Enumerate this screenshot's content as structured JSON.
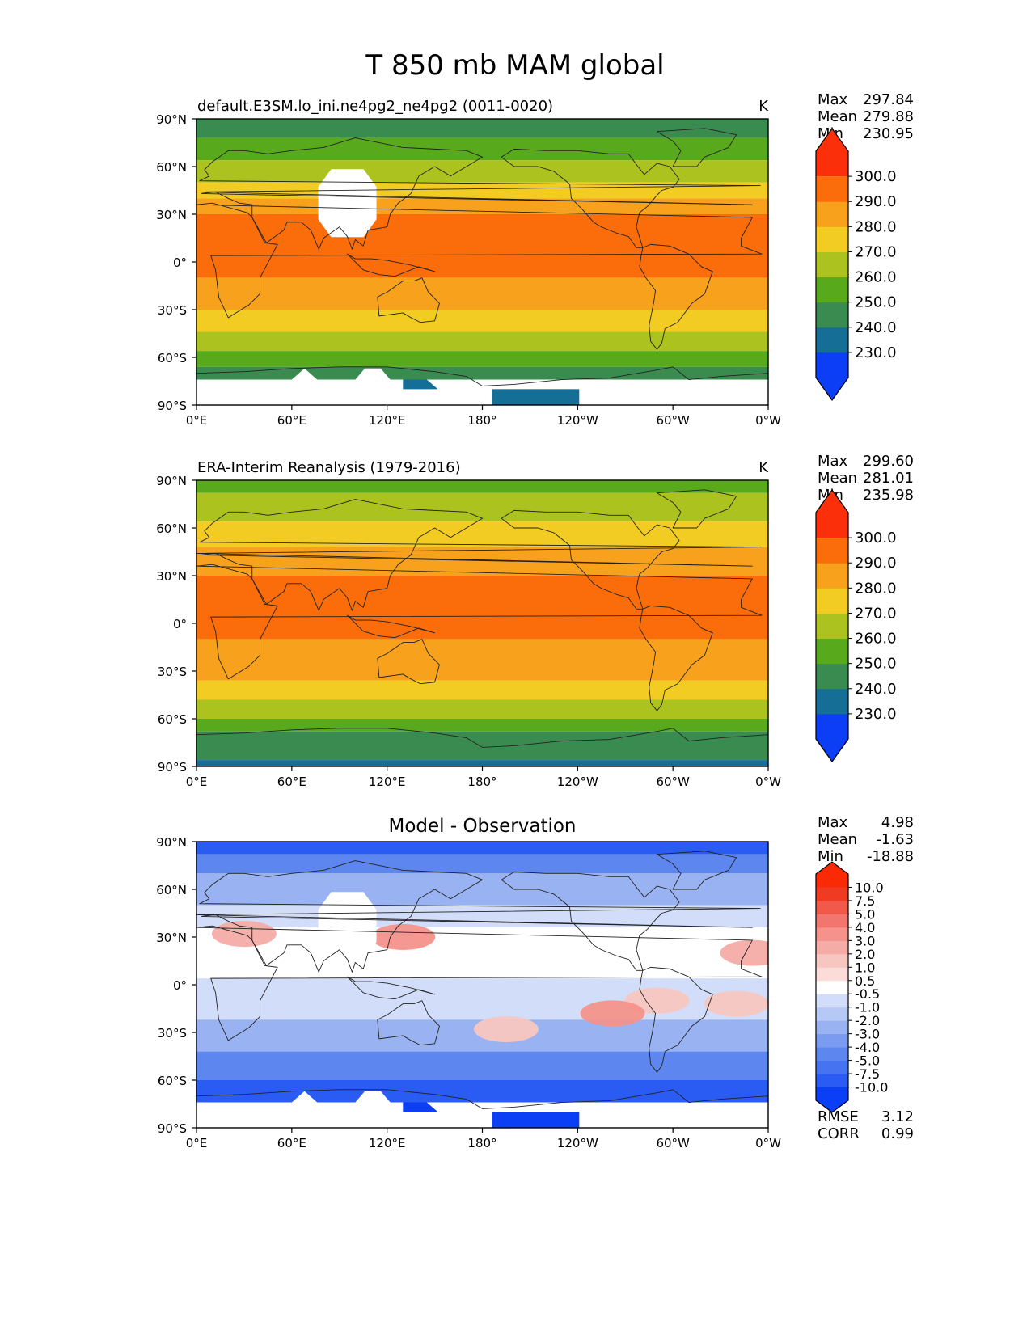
{
  "figure_title": "T 850 mb MAM global",
  "axis": {
    "x_ticks": [
      "0°E",
      "60°E",
      "120°E",
      "180°",
      "120°W",
      "60°W",
      "0°W"
    ],
    "y_ticks": [
      "90°N",
      "60°N",
      "30°N",
      "0°",
      "30°S",
      "60°S",
      "90°S"
    ]
  },
  "chart_data": [
    {
      "type": "heatmap",
      "title": "default.E3SM.lo_ini.ne4pg2_ne4pg2 (0011-0020)",
      "units": "K",
      "xlim": [
        0,
        360
      ],
      "ylim": [
        -90,
        90
      ],
      "stats": {
        "max_label": "Max",
        "max": "297.84",
        "mean_label": "Mean",
        "mean": "279.88",
        "min_label": "Min",
        "min": "230.95"
      },
      "colorbar": {
        "levels": [
          "230.0",
          "240.0",
          "250.0",
          "260.0",
          "270.0",
          "280.0",
          "290.0",
          "300.0"
        ],
        "colors": [
          "#0b3ef5",
          "#146e96",
          "#3a8b4f",
          "#58aa1c",
          "#acc21f",
          "#f2cc22",
          "#f8a11c",
          "#fa6d0a",
          "#fb300a"
        ]
      },
      "bands": [
        {
          "from": 90,
          "to": 78,
          "color": "#3a8b4f"
        },
        {
          "from": 78,
          "to": 64,
          "color": "#58aa1c"
        },
        {
          "from": 64,
          "to": 50,
          "color": "#acc21f"
        },
        {
          "from": 50,
          "to": 40,
          "color": "#f2cc22"
        },
        {
          "from": 40,
          "to": 30,
          "color": "#f8a11c"
        },
        {
          "from": 30,
          "to": -10,
          "color": "#fa6d0a"
        },
        {
          "from": -10,
          "to": -30,
          "color": "#f8a11c"
        },
        {
          "from": -30,
          "to": -44,
          "color": "#f2cc22"
        },
        {
          "from": -44,
          "to": -56,
          "color": "#acc21f"
        },
        {
          "from": -56,
          "to": -66,
          "color": "#58aa1c"
        },
        {
          "from": -66,
          "to": -74,
          "color": "#3a8b4f"
        },
        {
          "from": -74,
          "to": -90,
          "color": "#ffffff"
        }
      ],
      "missing": true,
      "antarctic_patch_color": "#146e96"
    },
    {
      "type": "heatmap",
      "title": "ERA-Interim Reanalysis (1979-2016)",
      "units": "K",
      "xlim": [
        0,
        360
      ],
      "ylim": [
        -90,
        90
      ],
      "stats": {
        "max_label": "Max",
        "max": "299.60",
        "mean_label": "Mean",
        "mean": "281.01",
        "min_label": "Min",
        "min": "235.98"
      },
      "colorbar": {
        "levels": [
          "230.0",
          "240.0",
          "250.0",
          "260.0",
          "270.0",
          "280.0",
          "290.0",
          "300.0"
        ],
        "colors": [
          "#0b3ef5",
          "#146e96",
          "#3a8b4f",
          "#58aa1c",
          "#acc21f",
          "#f2cc22",
          "#f8a11c",
          "#fa6d0a",
          "#fb300a"
        ]
      },
      "bands": [
        {
          "from": 90,
          "to": 82,
          "color": "#58aa1c"
        },
        {
          "from": 82,
          "to": 64,
          "color": "#acc21f"
        },
        {
          "from": 64,
          "to": 48,
          "color": "#f2cc22"
        },
        {
          "from": 48,
          "to": 30,
          "color": "#f8a11c"
        },
        {
          "from": 30,
          "to": -10,
          "color": "#fa6d0a"
        },
        {
          "from": -10,
          "to": -36,
          "color": "#f8a11c"
        },
        {
          "from": -36,
          "to": -48,
          "color": "#f2cc22"
        },
        {
          "from": -48,
          "to": -60,
          "color": "#acc21f"
        },
        {
          "from": -60,
          "to": -68,
          "color": "#58aa1c"
        },
        {
          "from": -68,
          "to": -86,
          "color": "#3a8b4f"
        },
        {
          "from": -86,
          "to": -90,
          "color": "#146e96"
        }
      ],
      "missing": false
    },
    {
      "type": "heatmap",
      "title": "Model - Observation",
      "units": "",
      "xlim": [
        0,
        360
      ],
      "ylim": [
        -90,
        90
      ],
      "stats": {
        "max_label": "Max",
        "max": "4.98",
        "mean_label": "Mean",
        "mean": "-1.63",
        "min_label": "Min",
        "min": "-18.88"
      },
      "metrics": {
        "rmse_label": "RMSE",
        "rmse": "3.12",
        "corr_label": "CORR",
        "corr": "0.99"
      },
      "colorbar": {
        "levels": [
          "-10.0",
          "-7.5",
          "-5.0",
          "-4.0",
          "-3.0",
          "-2.0",
          "-1.0",
          "-0.5",
          "0.5",
          "1.0",
          "2.0",
          "3.0",
          "4.0",
          "5.0",
          "7.5",
          "10.0"
        ],
        "colors": [
          "#0a3ff5",
          "#2a5bf3",
          "#4673f0",
          "#5d86ef",
          "#7b9bf0",
          "#98b2f2",
          "#b6c8f6",
          "#d2ddf9",
          "#ffffff",
          "#fbdcd9",
          "#f8c6c0",
          "#f6aca6",
          "#f4928b",
          "#f27670",
          "#f15a4a",
          "#ef3b22",
          "#f92a05"
        ]
      },
      "bands": [
        {
          "from": 90,
          "to": 82,
          "color": "#2a5bf3"
        },
        {
          "from": 82,
          "to": 70,
          "color": "#5d86ef"
        },
        {
          "from": 70,
          "to": 50,
          "color": "#98b2f2"
        },
        {
          "from": 50,
          "to": 36,
          "color": "#d2ddf9"
        },
        {
          "from": 36,
          "to": 26,
          "color": "#ffffff"
        },
        {
          "from": 26,
          "to": 4,
          "color": "#ffffff"
        },
        {
          "from": 4,
          "to": -22,
          "color": "#d2ddf9"
        },
        {
          "from": -22,
          "to": -42,
          "color": "#98b2f2"
        },
        {
          "from": -42,
          "to": -60,
          "color": "#5d86ef"
        },
        {
          "from": -60,
          "to": -74,
          "color": "#2a5bf3"
        },
        {
          "from": -74,
          "to": -90,
          "color": "#ffffff"
        }
      ],
      "warm_spots": [
        {
          "lon": 30,
          "lat": 32,
          "color": "#f6aca6"
        },
        {
          "lon": 130,
          "lat": 30,
          "color": "#f4928b"
        },
        {
          "lon": 290,
          "lat": -10,
          "color": "#f8c6c0"
        },
        {
          "lon": 262,
          "lat": -18,
          "color": "#f4928b"
        },
        {
          "lon": 350,
          "lat": 20,
          "color": "#f6aca6"
        },
        {
          "lon": 340,
          "lat": -12,
          "color": "#f8c6c0"
        },
        {
          "lon": 195,
          "lat": -28,
          "color": "#f8c6c0"
        }
      ],
      "missing": true,
      "antarctic_patch_color": "#0a3ff5"
    }
  ]
}
